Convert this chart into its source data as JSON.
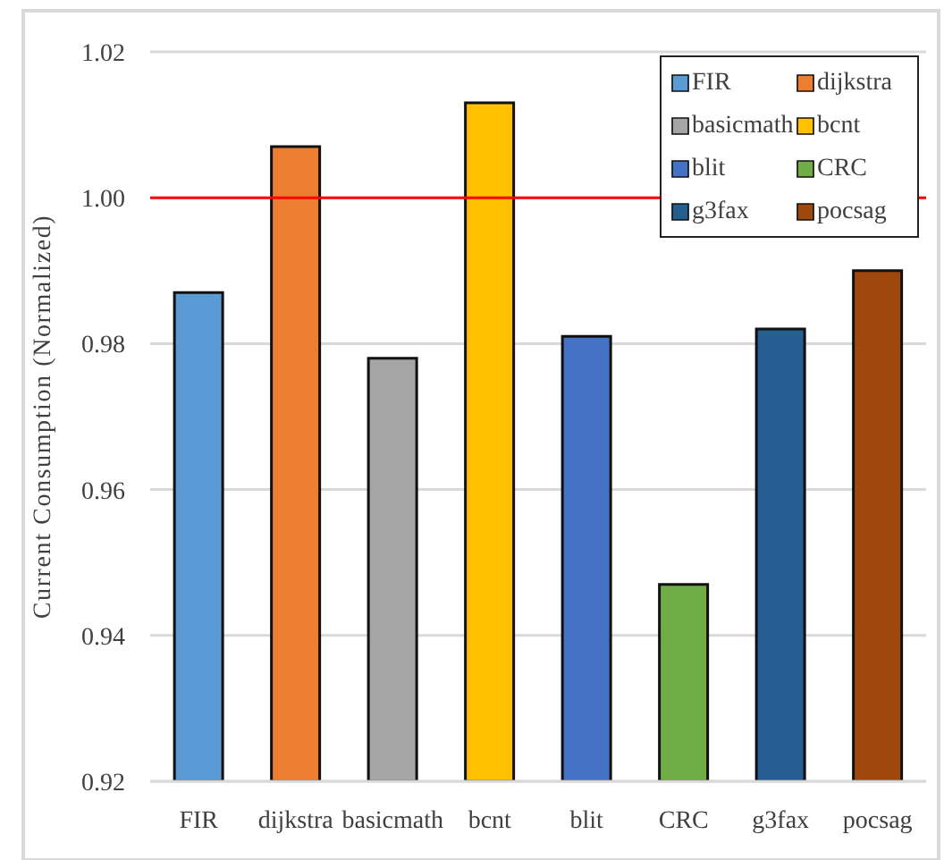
{
  "chart_data": {
    "type": "bar",
    "ylabel": "Current Consumption (Normalized)",
    "categories": [
      "FIR",
      "dijkstra",
      "basicmath",
      "bcnt",
      "blit",
      "CRC",
      "g3fax",
      "pocsag"
    ],
    "series": [
      {
        "name": "FIR",
        "color": "#5b9bd5",
        "values": [
          0.987,
          null,
          null,
          null,
          null,
          null,
          null,
          null
        ]
      },
      {
        "name": "dijkstra",
        "color": "#ed7d31",
        "values": [
          null,
          1.007,
          null,
          null,
          null,
          null,
          null,
          null
        ]
      },
      {
        "name": "basicmath",
        "color": "#a5a5a5",
        "values": [
          null,
          null,
          0.978,
          null,
          null,
          null,
          null,
          null
        ]
      },
      {
        "name": "bcnt",
        "color": "#ffc000",
        "values": [
          null,
          null,
          null,
          1.013,
          null,
          null,
          null,
          null
        ]
      },
      {
        "name": "blit",
        "color": "#4472c4",
        "values": [
          null,
          null,
          null,
          null,
          0.981,
          null,
          null,
          null
        ]
      },
      {
        "name": "CRC",
        "color": "#70ad47",
        "values": [
          null,
          null,
          null,
          null,
          null,
          0.947,
          null,
          null
        ]
      },
      {
        "name": "g3fax",
        "color": "#255e91",
        "values": [
          null,
          null,
          null,
          null,
          null,
          null,
          0.982,
          null
        ]
      },
      {
        "name": "pocsag",
        "color": "#9e480e",
        "values": [
          null,
          null,
          null,
          null,
          null,
          null,
          null,
          0.99
        ]
      }
    ],
    "ylim": [
      0.92,
      1.02
    ],
    "yticks": [
      0.92,
      0.94,
      0.96,
      0.98,
      {
        "value": 1.0,
        "label": "1.00"
      },
      1.02
    ],
    "grid": "y",
    "legend": "top right",
    "ref_lines": [
      {
        "axis": "y",
        "value": 1.0,
        "color": "#ff0000"
      }
    ]
  }
}
